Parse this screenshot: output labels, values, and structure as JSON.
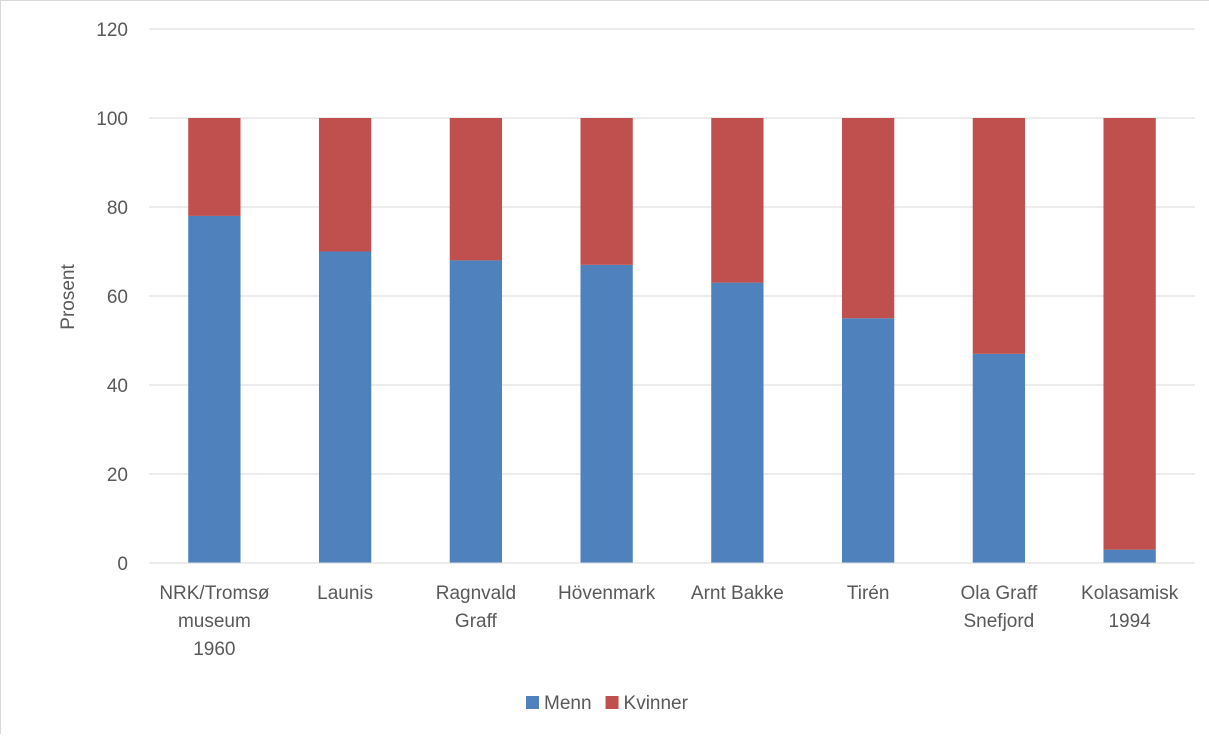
{
  "chart_data": {
    "type": "bar",
    "stacked": true,
    "ylabel": "Prosent",
    "ylim": [
      0,
      120
    ],
    "yticks": [
      0,
      20,
      40,
      60,
      80,
      100,
      120
    ],
    "grid": true,
    "legend_position": "bottom",
    "categories": [
      [
        "NRK/Tromsø",
        "museum",
        "1960"
      ],
      [
        "Launis"
      ],
      [
        "Ragnvald",
        "Graff"
      ],
      [
        "Hövenmark"
      ],
      [
        "Arnt Bakke"
      ],
      [
        "Tirén"
      ],
      [
        "Ola Graff",
        "Snefjord"
      ],
      [
        "Kolasamisk",
        "1994"
      ]
    ],
    "series": [
      {
        "name": "Menn",
        "color": "#4f81bd",
        "values": [
          78,
          70,
          68,
          67,
          63,
          55,
          47,
          3
        ]
      },
      {
        "name": "Kvinner",
        "color": "#c0504d",
        "values": [
          22,
          30,
          32,
          33,
          37,
          45,
          53,
          97
        ]
      }
    ]
  }
}
